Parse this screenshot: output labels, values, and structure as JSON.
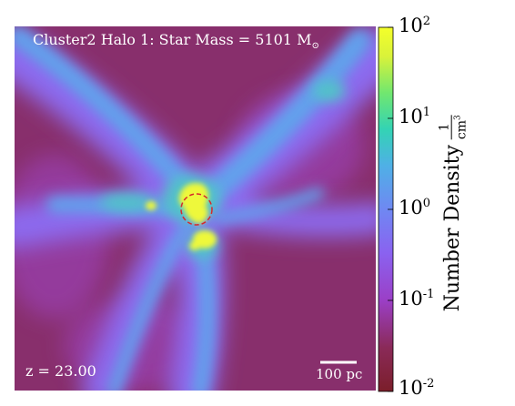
{
  "title": {
    "prefix": "Cluster2 Halo 1: Star Mass = 5101 M",
    "subscript": "⊙"
  },
  "redshift": "z = 23.00",
  "scale_bar": {
    "label": "100 pc"
  },
  "colorbar": {
    "label_text": "Number Density",
    "unit_numerator": "1",
    "unit_denominator": "cm",
    "unit_denominator_exponent": "3",
    "scale": "log",
    "range": [
      0.01,
      100
    ],
    "ticks": [
      {
        "base": "10",
        "exp": "2"
      },
      {
        "base": "10",
        "exp": "1"
      },
      {
        "base": "10",
        "exp": "0"
      },
      {
        "base": "10",
        "exp": "-1"
      },
      {
        "base": "10",
        "exp": "-2"
      }
    ],
    "colormap": [
      "#7b1e2a",
      "#8d2f6a",
      "#9b3fc6",
      "#8a62f0",
      "#6f88f2",
      "#4fb0e6",
      "#33d3b4",
      "#71e76f",
      "#e6f536",
      "#f4ff2a"
    ]
  },
  "colors": {
    "background": "#882f6c",
    "filament": "#8a6cf2",
    "filament_core": "#5fa8ec",
    "dense_gas": "#f4ff2a",
    "target_circle": "#d6282a",
    "annotation_text": "#ffffff"
  }
}
